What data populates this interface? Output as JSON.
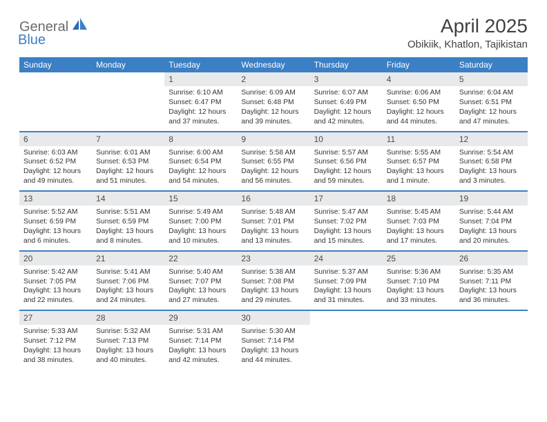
{
  "logo": {
    "text_gray": "General",
    "text_blue": "Blue"
  },
  "title": "April 2025",
  "location": "Obikiik, Khatlon, Tajikistan",
  "styling": {
    "header_bg": "#3b7fc4",
    "header_fg": "#ffffff",
    "daynum_bg": "#e8e9ea",
    "text_color": "#333333",
    "page_bg": "#ffffff",
    "row_border": "#3b7fc4",
    "title_fontsize": 28,
    "location_fontsize": 15,
    "dayheader_fontsize": 12,
    "cell_fontsize": 10.3
  },
  "day_headers": [
    "Sunday",
    "Monday",
    "Tuesday",
    "Wednesday",
    "Thursday",
    "Friday",
    "Saturday"
  ],
  "weeks": [
    [
      null,
      null,
      {
        "n": "1",
        "sr": "6:10 AM",
        "ss": "6:47 PM",
        "dl": "12 hours and 37 minutes."
      },
      {
        "n": "2",
        "sr": "6:09 AM",
        "ss": "6:48 PM",
        "dl": "12 hours and 39 minutes."
      },
      {
        "n": "3",
        "sr": "6:07 AM",
        "ss": "6:49 PM",
        "dl": "12 hours and 42 minutes."
      },
      {
        "n": "4",
        "sr": "6:06 AM",
        "ss": "6:50 PM",
        "dl": "12 hours and 44 minutes."
      },
      {
        "n": "5",
        "sr": "6:04 AM",
        "ss": "6:51 PM",
        "dl": "12 hours and 47 minutes."
      }
    ],
    [
      {
        "n": "6",
        "sr": "6:03 AM",
        "ss": "6:52 PM",
        "dl": "12 hours and 49 minutes."
      },
      {
        "n": "7",
        "sr": "6:01 AM",
        "ss": "6:53 PM",
        "dl": "12 hours and 51 minutes."
      },
      {
        "n": "8",
        "sr": "6:00 AM",
        "ss": "6:54 PM",
        "dl": "12 hours and 54 minutes."
      },
      {
        "n": "9",
        "sr": "5:58 AM",
        "ss": "6:55 PM",
        "dl": "12 hours and 56 minutes."
      },
      {
        "n": "10",
        "sr": "5:57 AM",
        "ss": "6:56 PM",
        "dl": "12 hours and 59 minutes."
      },
      {
        "n": "11",
        "sr": "5:55 AM",
        "ss": "6:57 PM",
        "dl": "13 hours and 1 minute."
      },
      {
        "n": "12",
        "sr": "5:54 AM",
        "ss": "6:58 PM",
        "dl": "13 hours and 3 minutes."
      }
    ],
    [
      {
        "n": "13",
        "sr": "5:52 AM",
        "ss": "6:59 PM",
        "dl": "13 hours and 6 minutes."
      },
      {
        "n": "14",
        "sr": "5:51 AM",
        "ss": "6:59 PM",
        "dl": "13 hours and 8 minutes."
      },
      {
        "n": "15",
        "sr": "5:49 AM",
        "ss": "7:00 PM",
        "dl": "13 hours and 10 minutes."
      },
      {
        "n": "16",
        "sr": "5:48 AM",
        "ss": "7:01 PM",
        "dl": "13 hours and 13 minutes."
      },
      {
        "n": "17",
        "sr": "5:47 AM",
        "ss": "7:02 PM",
        "dl": "13 hours and 15 minutes."
      },
      {
        "n": "18",
        "sr": "5:45 AM",
        "ss": "7:03 PM",
        "dl": "13 hours and 17 minutes."
      },
      {
        "n": "19",
        "sr": "5:44 AM",
        "ss": "7:04 PM",
        "dl": "13 hours and 20 minutes."
      }
    ],
    [
      {
        "n": "20",
        "sr": "5:42 AM",
        "ss": "7:05 PM",
        "dl": "13 hours and 22 minutes."
      },
      {
        "n": "21",
        "sr": "5:41 AM",
        "ss": "7:06 PM",
        "dl": "13 hours and 24 minutes."
      },
      {
        "n": "22",
        "sr": "5:40 AM",
        "ss": "7:07 PM",
        "dl": "13 hours and 27 minutes."
      },
      {
        "n": "23",
        "sr": "5:38 AM",
        "ss": "7:08 PM",
        "dl": "13 hours and 29 minutes."
      },
      {
        "n": "24",
        "sr": "5:37 AM",
        "ss": "7:09 PM",
        "dl": "13 hours and 31 minutes."
      },
      {
        "n": "25",
        "sr": "5:36 AM",
        "ss": "7:10 PM",
        "dl": "13 hours and 33 minutes."
      },
      {
        "n": "26",
        "sr": "5:35 AM",
        "ss": "7:11 PM",
        "dl": "13 hours and 36 minutes."
      }
    ],
    [
      {
        "n": "27",
        "sr": "5:33 AM",
        "ss": "7:12 PM",
        "dl": "13 hours and 38 minutes."
      },
      {
        "n": "28",
        "sr": "5:32 AM",
        "ss": "7:13 PM",
        "dl": "13 hours and 40 minutes."
      },
      {
        "n": "29",
        "sr": "5:31 AM",
        "ss": "7:14 PM",
        "dl": "13 hours and 42 minutes."
      },
      {
        "n": "30",
        "sr": "5:30 AM",
        "ss": "7:14 PM",
        "dl": "13 hours and 44 minutes."
      },
      null,
      null,
      null
    ]
  ],
  "labels": {
    "sunrise": "Sunrise:",
    "sunset": "Sunset:",
    "daylight": "Daylight:"
  }
}
